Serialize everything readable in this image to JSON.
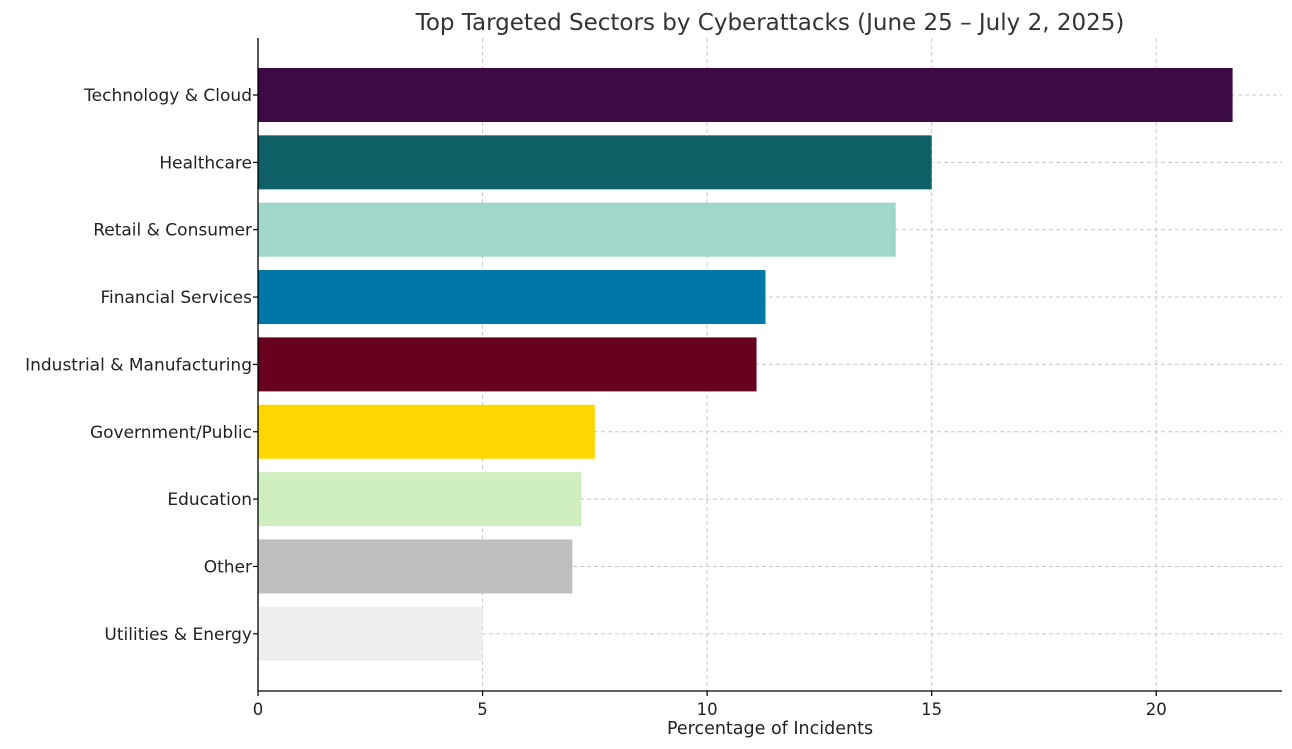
{
  "chart_data": {
    "type": "bar",
    "orientation": "horizontal",
    "title": "Top Targeted Sectors by Cyberattacks (June 25 – July 2, 2025)",
    "xlabel": "Percentage of Incidents",
    "ylabel": "",
    "xlim": [
      0,
      22.8
    ],
    "xticks": [
      0,
      5,
      10,
      15,
      20
    ],
    "xtick_labels": [
      "0",
      "5",
      "10",
      "15",
      "20"
    ],
    "grid": true,
    "categories": [
      "Technology & Cloud",
      "Healthcare",
      "Retail & Consumer",
      "Financial Services",
      "Industrial & Manufacturing",
      "Government/Public",
      "Education",
      "Other",
      "Utilities & Energy"
    ],
    "values": [
      21.7,
      15.0,
      14.2,
      11.3,
      11.1,
      7.5,
      7.2,
      7.0,
      5.0
    ],
    "colors": [
      "#3c0a44",
      "#0e5f66",
      "#9fd8ca",
      "#0077a6",
      "#67001f",
      "#ffd700",
      "#cfefc1",
      "#bebebe",
      "#eeeeee"
    ]
  }
}
